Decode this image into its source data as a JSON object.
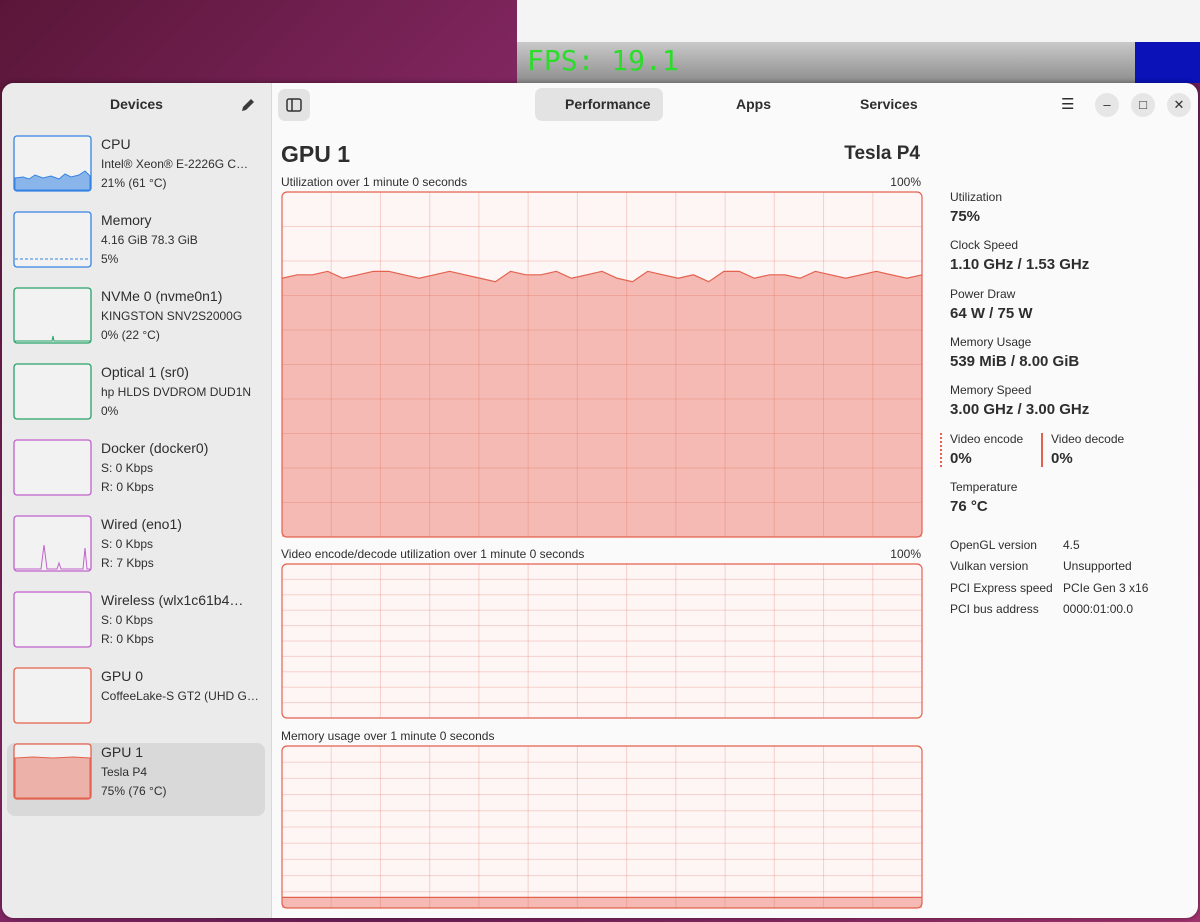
{
  "background_window": {
    "overlay_text": "FPS: 19.1"
  },
  "sidebar": {
    "title": "Devices",
    "devices": [
      {
        "name": "CPU",
        "line1": "Intel® Xeon® E-2226G C…",
        "line2": "21% (61 °C)",
        "color": "#3584e4"
      },
      {
        "name": "Memory",
        "line1": "4.16 GiB 78.3 GiB",
        "line2": "5%",
        "color": "#3584e4"
      },
      {
        "name": "NVMe 0 (nvme0n1)",
        "line1": "KINGSTON SNV2S2000G",
        "line2": "0% (22 °C)",
        "color": "#26a269"
      },
      {
        "name": "Optical 1 (sr0)",
        "line1": "hp HLDS DVDROM DUD1N",
        "line2": "0%",
        "color": "#26a269"
      },
      {
        "name": "Docker (docker0)",
        "line1": "S: 0 Kbps",
        "line2": "R: 0 Kbps",
        "color": "#c061cb"
      },
      {
        "name": "Wired (eno1)",
        "line1": "S: 0 Kbps",
        "line2": "R: 7 Kbps",
        "color": "#c061cb"
      },
      {
        "name": "Wireless (wlx1c61b4…",
        "line1": "S: 0 Kbps",
        "line2": "R: 0 Kbps",
        "color": "#c061cb"
      },
      {
        "name": "GPU 0",
        "line1": "CoffeeLake-S GT2 (UHD G…",
        "color": "#e5614f"
      },
      {
        "name": "GPU 1",
        "line1": "Tesla P4",
        "line2": "75% (76 °C)",
        "color": "#e5614f",
        "selected": true
      }
    ]
  },
  "header": {
    "tabs": [
      "Performance",
      "Apps",
      "Services"
    ],
    "selected_tab": 0
  },
  "device_title": "GPU 1",
  "device_model": "Tesla P4",
  "graphs": [
    {
      "title": "Utilization over 1 minute 0 seconds",
      "max_label": "100%",
      "color": "#e5614f",
      "ylim": [
        0,
        100
      ],
      "values": [
        75,
        76,
        76,
        77,
        75,
        76,
        77,
        77,
        76,
        75,
        76,
        77,
        76,
        75,
        74,
        77,
        76,
        76,
        77,
        75,
        76,
        77,
        75,
        74,
        77,
        76,
        75,
        76,
        74,
        77,
        77,
        75,
        76,
        76,
        75,
        77,
        76,
        75,
        76,
        77,
        76,
        75,
        76
      ]
    },
    {
      "title": "Video encode/decode utilization over 1 minute 0 seconds",
      "max_label": "100%",
      "color": "#e5614f",
      "ylim": [
        0,
        100
      ]
    },
    {
      "title": "Memory usage over 1 minute 0 seconds",
      "color": "#e5614f",
      "ylim": [
        0,
        8192
      ],
      "values": [
        539,
        539,
        539,
        539,
        539,
        539,
        539,
        539,
        539,
        539,
        539,
        539,
        539,
        539,
        539,
        539,
        539,
        539,
        539,
        539
      ]
    }
  ],
  "stats": [
    {
      "label": "Utilization",
      "value": "75%"
    },
    {
      "label": "Clock Speed",
      "value": "1.10 GHz / 1.53 GHz"
    },
    {
      "label": "Power Draw",
      "value": "64 W / 75 W"
    },
    {
      "label": "Memory Usage",
      "value": "539 MiB / 8.00 GiB"
    },
    {
      "label": "Memory Speed",
      "value": "3.00 GHz / 3.00 GHz"
    }
  ],
  "encode_decode": [
    {
      "label": "Video encode",
      "value": "0%"
    },
    {
      "label": "Video decode",
      "value": "0%"
    }
  ],
  "temperature": {
    "label": "Temperature",
    "value": "76 °C"
  },
  "info": [
    [
      "OpenGL version",
      "4.5"
    ],
    [
      "Vulkan version",
      "Unsupported"
    ],
    [
      "PCI Express speed",
      "PCIe Gen 3 x16"
    ],
    [
      "PCI bus address",
      "0000:01:00.0"
    ]
  ]
}
